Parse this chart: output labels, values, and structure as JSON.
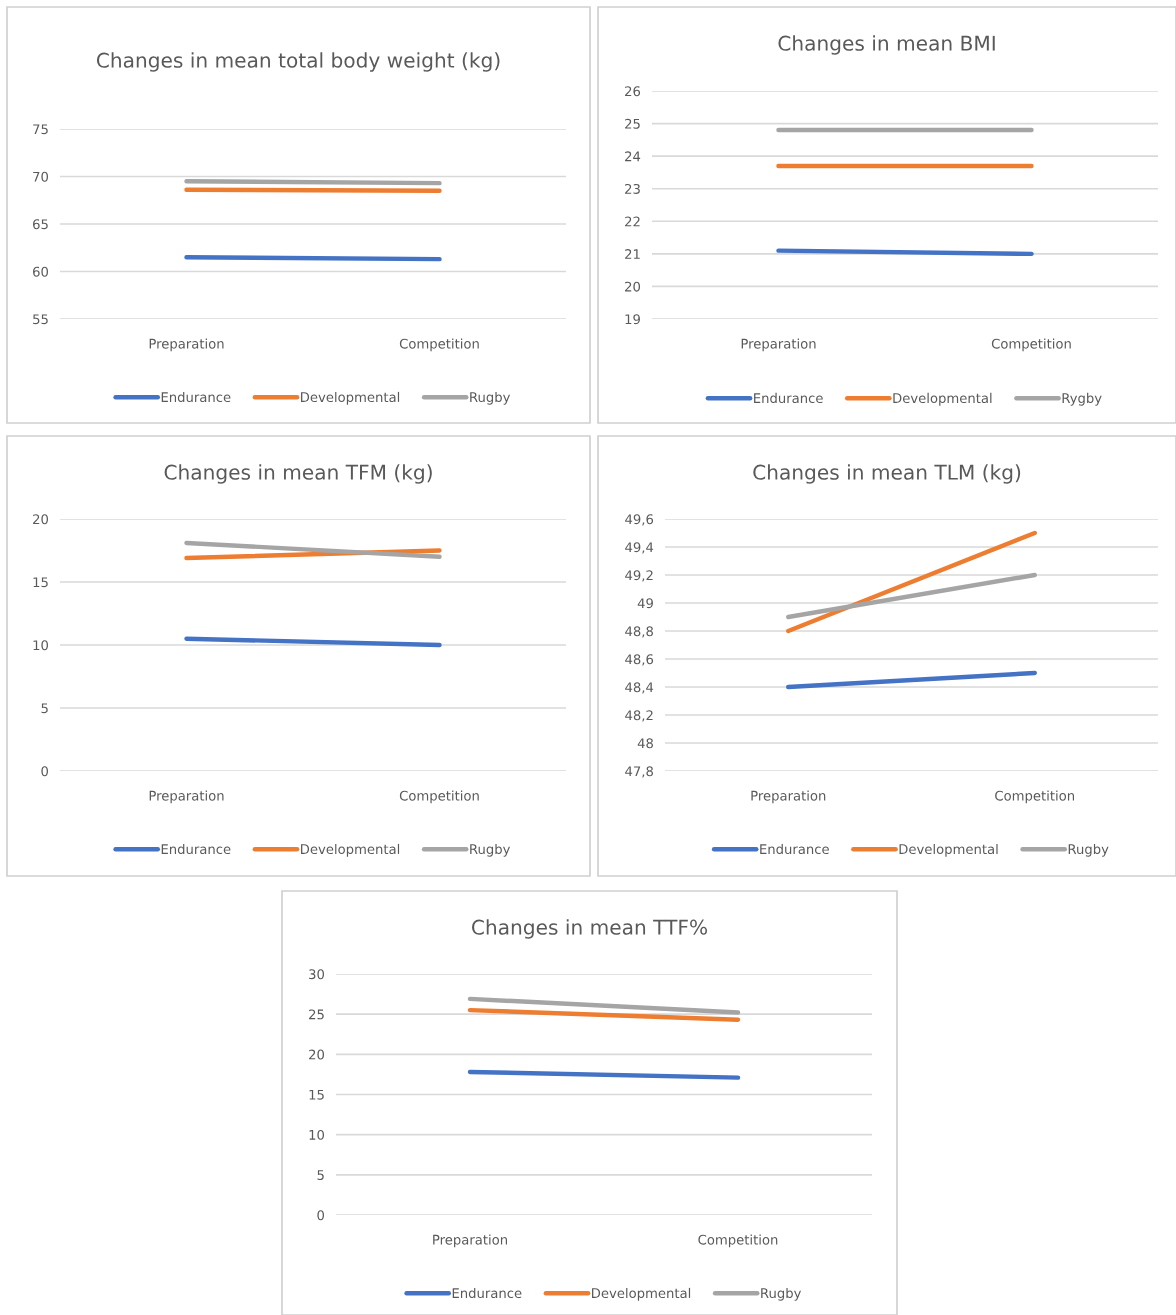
{
  "chart_data": [
    {
      "type": "line",
      "title": "Changes in mean total body weight (kg)",
      "categories": [
        "Preparation",
        "Competition"
      ],
      "ylim": [
        55,
        75
      ],
      "yticks": [
        55,
        60,
        65,
        70,
        75
      ],
      "grid": "y",
      "legend": "bottom",
      "marker": "none",
      "series": [
        {
          "name": "Endurance",
          "color": "#4472c4",
          "values": [
            61.5,
            61.3
          ]
        },
        {
          "name": "Developmental",
          "color": "#ed7d31",
          "values": [
            68.6,
            68.5
          ]
        },
        {
          "name": "Rugby",
          "color": "#a5a5a5",
          "values": [
            69.5,
            69.3
          ]
        }
      ]
    },
    {
      "type": "line",
      "title": "Changes in mean BMI",
      "categories": [
        "Preparation",
        "Competition"
      ],
      "ylim": [
        19,
        26
      ],
      "yticks": [
        19,
        20,
        21,
        22,
        23,
        24,
        25,
        26
      ],
      "grid": "y",
      "legend": "bottom",
      "marker": "none",
      "series": [
        {
          "name": "Endurance",
          "color": "#4472c4",
          "values": [
            21.1,
            21.0
          ]
        },
        {
          "name": "Developmental",
          "color": "#ed7d31",
          "values": [
            23.7,
            23.7
          ]
        },
        {
          "name": "Rygby",
          "color": "#a5a5a5",
          "values": [
            24.8,
            24.8
          ]
        }
      ]
    },
    {
      "type": "line",
      "title": "Changes in mean TFM (kg)",
      "categories": [
        "Preparation",
        "Competition"
      ],
      "ylim": [
        0,
        20
      ],
      "yticks": [
        0,
        5,
        10,
        15,
        20
      ],
      "grid": "y",
      "legend": "bottom",
      "marker": "none",
      "series": [
        {
          "name": "Endurance",
          "color": "#4472c4",
          "values": [
            10.5,
            10.0
          ]
        },
        {
          "name": "Developmental",
          "color": "#ed7d31",
          "values": [
            16.9,
            17.5
          ]
        },
        {
          "name": "Rugby",
          "color": "#a5a5a5",
          "values": [
            18.1,
            17.0
          ]
        }
      ]
    },
    {
      "type": "line",
      "title": "Changes in mean TLM (kg)",
      "categories": [
        "Preparation",
        "Competition"
      ],
      "ylim": [
        47.8,
        49.6
      ],
      "yticks": [
        {
          "value": 47.8,
          "label": "47,8"
        },
        48,
        {
          "value": 48.2,
          "label": "48,2"
        },
        {
          "value": 48.4,
          "label": "48,4"
        },
        {
          "value": 48.6,
          "label": "48,6"
        },
        {
          "value": 48.8,
          "label": "48,8"
        },
        49,
        {
          "value": 49.2,
          "label": "49,2"
        },
        {
          "value": 49.4,
          "label": "49,4"
        },
        {
          "value": 49.6,
          "label": "49,6"
        }
      ],
      "grid": "y",
      "legend": "bottom",
      "marker": "none",
      "series": [
        {
          "name": "Endurance",
          "color": "#4472c4",
          "values": [
            48.4,
            48.5
          ]
        },
        {
          "name": "Developmental",
          "color": "#ed7d31",
          "values": [
            48.8,
            49.5
          ]
        },
        {
          "name": "Rugby",
          "color": "#a5a5a5",
          "values": [
            48.9,
            49.2
          ]
        }
      ]
    },
    {
      "type": "line",
      "title": "Changes in mean TTF%",
      "categories": [
        "Preparation",
        "Competition"
      ],
      "ylim": [
        0,
        30
      ],
      "yticks": [
        0,
        5,
        10,
        15,
        20,
        25,
        30
      ],
      "grid": "y",
      "legend": "bottom",
      "marker": "none",
      "series": [
        {
          "name": "Endurance",
          "color": "#4472c4",
          "values": [
            17.8,
            17.1
          ]
        },
        {
          "name": "Developmental",
          "color": "#ed7d31",
          "values": [
            25.5,
            24.3
          ]
        },
        {
          "name": "Rugby",
          "color": "#a5a5a5",
          "values": [
            26.9,
            25.2
          ]
        }
      ]
    }
  ]
}
